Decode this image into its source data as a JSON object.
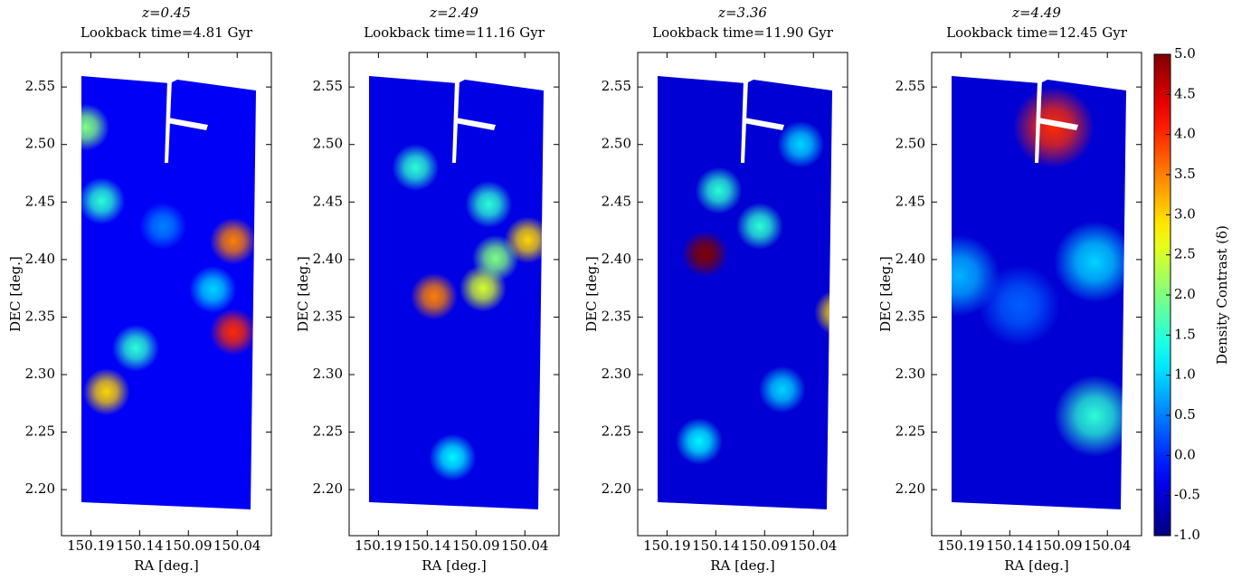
{
  "chart_data": [
    {
      "type": "heatmap",
      "title": "z=0.45",
      "subtitle": "Lookback time=4.81 Gyr",
      "xlabel": "RA [deg.]",
      "ylabel": "DEC [deg.]",
      "xlim": [
        150.22,
        150.005
      ],
      "ylim": [
        2.16,
        2.58
      ],
      "xticks": [
        150.19,
        150.14,
        150.09,
        150.04
      ],
      "yticks": [
        {
          "value": 2.2,
          "label": "2.20"
        },
        2.25,
        {
          "value": 2.3,
          "label": "2.30"
        },
        2.35,
        {
          "value": 2.4,
          "label": "2.40"
        },
        2.45,
        {
          "value": 2.5,
          "label": "2.50"
        },
        2.55
      ],
      "background": -0.3,
      "x": [
        150.044,
        150.044,
        150.174,
        150.179,
        150.195,
        150.065,
        150.144,
        150.116
      ],
      "y": [
        2.416,
        2.337,
        2.285,
        2.451,
        2.515,
        2.374,
        2.323,
        2.429
      ],
      "values": [
        3.5,
        4.0,
        3.0,
        1.5,
        2.0,
        1.0,
        1.5,
        0.5
      ]
    },
    {
      "type": "heatmap",
      "title": "z=2.49",
      "subtitle": "Lookback time=11.16 Gyr",
      "xlabel": "RA [deg.]",
      "ylabel": "DEC [deg.]",
      "xlim": [
        150.22,
        150.005
      ],
      "ylim": [
        2.16,
        2.58
      ],
      "xticks": [
        150.19,
        150.14,
        150.09,
        150.04
      ],
      "yticks": [
        {
          "value": 2.2,
          "label": "2.20"
        },
        2.25,
        {
          "value": 2.3,
          "label": "2.30"
        },
        2.35,
        {
          "value": 2.4,
          "label": "2.40"
        },
        2.45,
        {
          "value": 2.5,
          "label": "2.50"
        },
        2.55
      ],
      "background": -0.4,
      "x": [
        150.133,
        150.037,
        150.083,
        150.07,
        150.152,
        150.077,
        150.114
      ],
      "y": [
        2.368,
        2.417,
        2.375,
        2.401,
        2.48,
        2.448,
        2.228
      ],
      "values": [
        3.5,
        3.0,
        2.5,
        2.0,
        1.5,
        1.5,
        1.2
      ]
    },
    {
      "type": "heatmap",
      "title": "z=3.36",
      "subtitle": "Lookback time=11.90 Gyr",
      "xlabel": "RA [deg.]",
      "ylabel": "DEC [deg.]",
      "xlim": [
        150.22,
        150.005
      ],
      "ylim": [
        2.16,
        2.58
      ],
      "xticks": [
        150.19,
        150.14,
        150.09,
        150.04
      ],
      "yticks": [
        {
          "value": 2.2,
          "label": "2.20"
        },
        2.25,
        {
          "value": 2.3,
          "label": "2.30"
        },
        2.35,
        {
          "value": 2.4,
          "label": "2.40"
        },
        2.45,
        {
          "value": 2.5,
          "label": "2.50"
        },
        2.55
      ],
      "background": -0.5,
      "x": [
        150.151,
        150.015,
        150.137,
        150.095,
        150.053,
        150.157,
        150.072
      ],
      "y": [
        2.405,
        2.354,
        2.46,
        2.429,
        2.5,
        2.242,
        2.287
      ],
      "values": [
        5.0,
        3.0,
        1.5,
        1.5,
        1.0,
        1.2,
        1.0
      ]
    },
    {
      "type": "heatmap",
      "title": "z=4.49",
      "subtitle": "Lookback time=12.45 Gyr",
      "xlabel": "RA [deg.]",
      "ylabel": "DEC [deg.]",
      "xlim": [
        150.22,
        150.005
      ],
      "ylim": [
        2.16,
        2.58
      ],
      "xticks": [
        150.19,
        150.14,
        150.09,
        150.04
      ],
      "yticks": [
        {
          "value": 2.2,
          "label": "2.20"
        },
        2.25,
        {
          "value": 2.3,
          "label": "2.30"
        },
        2.35,
        {
          "value": 2.4,
          "label": "2.40"
        },
        2.45,
        {
          "value": 2.5,
          "label": "2.50"
        },
        2.55
      ],
      "background": -0.5,
      "x": [
        150.095,
        150.053,
        150.053,
        150.192,
        150.13
      ],
      "y": [
        2.515,
        2.264,
        2.398,
        2.386,
        2.36
      ],
      "values": [
        4.0,
        1.5,
        1.0,
        0.8,
        0.3
      ]
    }
  ],
  "colorbar": {
    "label": "Density Contrast (δ)",
    "lim": [
      -1,
      5
    ],
    "ticks": [
      {
        "value": -1,
        "label": "-1.0"
      },
      -0.5,
      {
        "value": 0,
        "label": "0.0"
      },
      0.5,
      {
        "value": 1,
        "label": "1.0"
      },
      1.5,
      {
        "value": 2,
        "label": "2.0"
      },
      2.5,
      {
        "value": 3,
        "label": "3.0"
      },
      3.5,
      {
        "value": 4,
        "label": "4.0"
      },
      4.5,
      {
        "value": 5,
        "label": "5.0"
      }
    ]
  }
}
